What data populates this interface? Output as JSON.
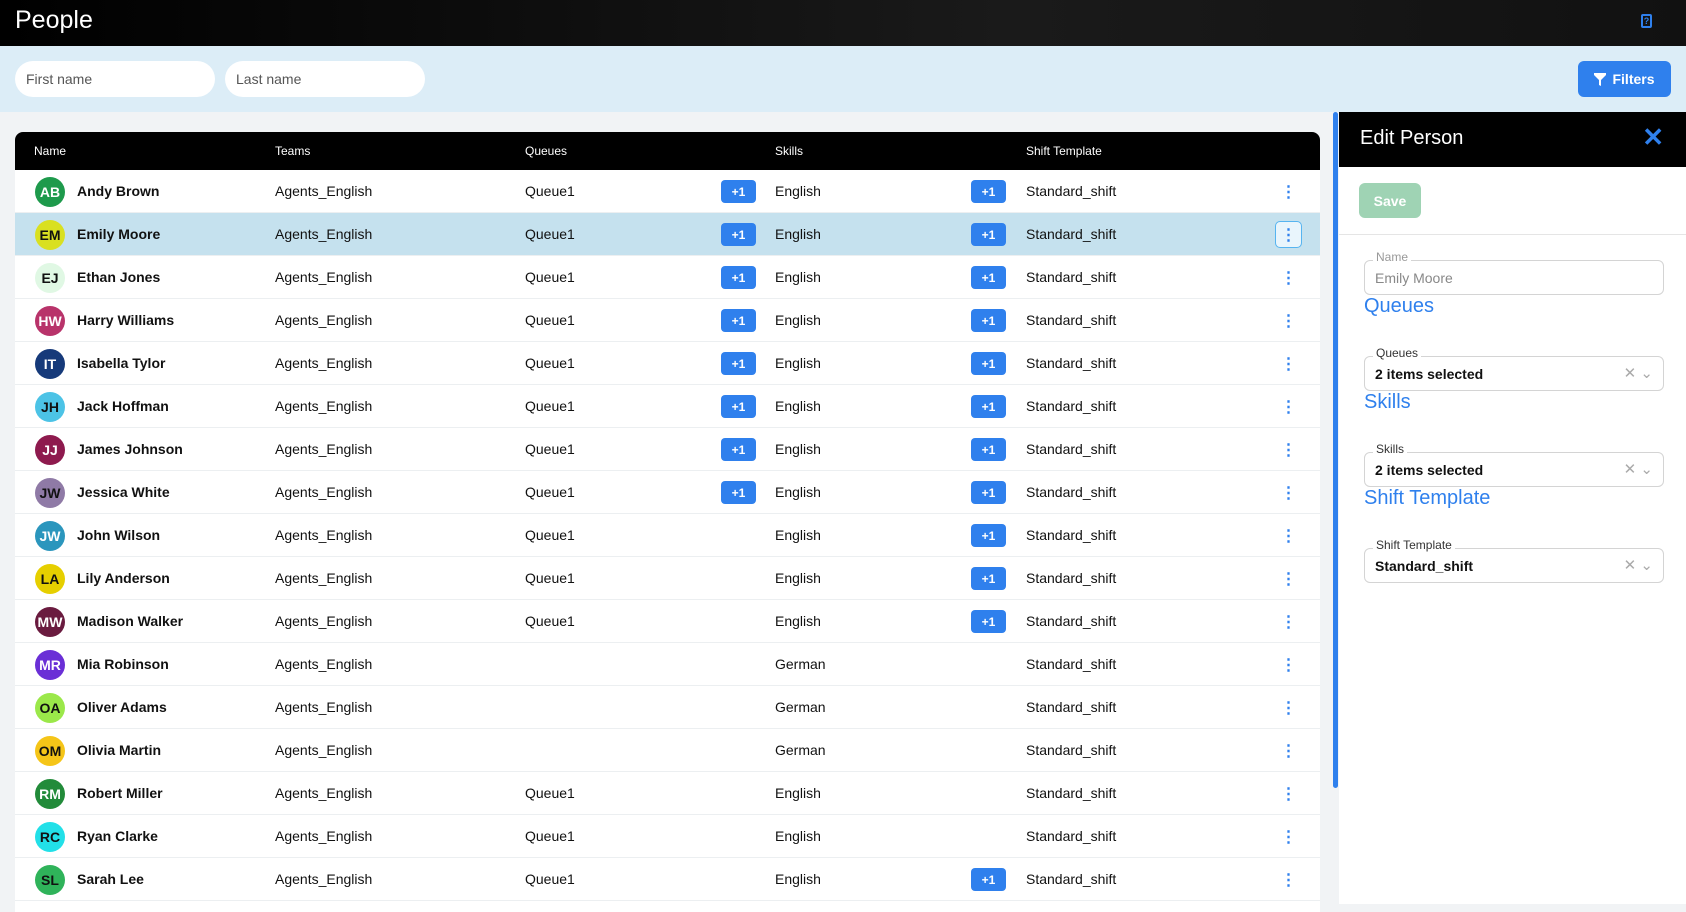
{
  "header": {
    "title": "People",
    "help_icon": "help-icon"
  },
  "toolbar": {
    "first_name_placeholder": "First name",
    "last_name_placeholder": "Last name",
    "filters_label": "Filters"
  },
  "table": {
    "columns": [
      "Name",
      "Teams",
      "Queues",
      "Skills",
      "Shift Template"
    ],
    "rows": [
      {
        "initials": "AB",
        "name": "Andy Brown",
        "color": "#1e9a4c",
        "fg": "#fff",
        "team": "Agents_English",
        "queue": "Queue1",
        "queue_more": "+1",
        "skill": "English",
        "skill_more": "+1",
        "shift": "Standard_shift"
      },
      {
        "initials": "EM",
        "name": "Emily Moore",
        "color": "#d9e021",
        "fg": "#111",
        "team": "Agents_English",
        "queue": "Queue1",
        "queue_more": "+1",
        "skill": "English",
        "skill_more": "+1",
        "shift": "Standard_shift",
        "selected": true
      },
      {
        "initials": "EJ",
        "name": "Ethan Jones",
        "color": "#e0f8e4",
        "fg": "#111",
        "team": "Agents_English",
        "queue": "Queue1",
        "queue_more": "+1",
        "skill": "English",
        "skill_more": "+1",
        "shift": "Standard_shift"
      },
      {
        "initials": "HW",
        "name": "Harry Williams",
        "color": "#b8336a",
        "fg": "#fff",
        "team": "Agents_English",
        "queue": "Queue1",
        "queue_more": "+1",
        "skill": "English",
        "skill_more": "+1",
        "shift": "Standard_shift"
      },
      {
        "initials": "IT",
        "name": "Isabella Tylor",
        "color": "#163a7a",
        "fg": "#fff",
        "team": "Agents_English",
        "queue": "Queue1",
        "queue_more": "+1",
        "skill": "English",
        "skill_more": "+1",
        "shift": "Standard_shift"
      },
      {
        "initials": "JH",
        "name": "Jack Hoffman",
        "color": "#4cc3e6",
        "fg": "#111",
        "team": "Agents_English",
        "queue": "Queue1",
        "queue_more": "+1",
        "skill": "English",
        "skill_more": "+1",
        "shift": "Standard_shift"
      },
      {
        "initials": "JJ",
        "name": "James Johnson",
        "color": "#8e1a4e",
        "fg": "#fff",
        "team": "Agents_English",
        "queue": "Queue1",
        "queue_more": "+1",
        "skill": "English",
        "skill_more": "+1",
        "shift": "Standard_shift"
      },
      {
        "initials": "JW",
        "name": "Jessica White",
        "color": "#8f7aa6",
        "fg": "#111",
        "team": "Agents_English",
        "queue": "Queue1",
        "queue_more": "+1",
        "skill": "English",
        "skill_more": "+1",
        "shift": "Standard_shift"
      },
      {
        "initials": "JW",
        "name": "John Wilson",
        "color": "#2b96bd",
        "fg": "#fff",
        "team": "Agents_English",
        "queue": "Queue1",
        "skill": "English",
        "skill_more": "+1",
        "shift": "Standard_shift"
      },
      {
        "initials": "LA",
        "name": "Lily Anderson",
        "color": "#e6cf00",
        "fg": "#111",
        "team": "Agents_English",
        "queue": "Queue1",
        "skill": "English",
        "skill_more": "+1",
        "shift": "Standard_shift"
      },
      {
        "initials": "MW",
        "name": "Madison Walker",
        "color": "#6a1b3f",
        "fg": "#fff",
        "team": "Agents_English",
        "queue": "Queue1",
        "skill": "English",
        "skill_more": "+1",
        "shift": "Standard_shift"
      },
      {
        "initials": "MR",
        "name": "Mia Robinson",
        "color": "#6a2fd6",
        "fg": "#fff",
        "team": "Agents_English",
        "skill": "German",
        "shift": "Standard_shift"
      },
      {
        "initials": "OA",
        "name": "Oliver Adams",
        "color": "#9be84a",
        "fg": "#111",
        "team": "Agents_English",
        "skill": "German",
        "shift": "Standard_shift"
      },
      {
        "initials": "OM",
        "name": "Olivia Martin",
        "color": "#f5c518",
        "fg": "#111",
        "team": "Agents_English",
        "skill": "German",
        "shift": "Standard_shift"
      },
      {
        "initials": "RM",
        "name": "Robert Miller",
        "color": "#228b3a",
        "fg": "#fff",
        "team": "Agents_English",
        "queue": "Queue1",
        "skill": "English",
        "shift": "Standard_shift"
      },
      {
        "initials": "RC",
        "name": "Ryan Clarke",
        "color": "#22e0e8",
        "fg": "#111",
        "team": "Agents_English",
        "queue": "Queue1",
        "skill": "English",
        "shift": "Standard_shift"
      },
      {
        "initials": "SL",
        "name": "Sarah Lee",
        "color": "#2fb35a",
        "fg": "#111",
        "team": "Agents_English",
        "queue": "Queue1",
        "skill": "English",
        "skill_more": "+1",
        "shift": "Standard_shift"
      }
    ]
  },
  "panel": {
    "title": "Edit Person",
    "save_label": "Save",
    "name_label": "Name",
    "name_value": "Emily Moore",
    "queues_heading": "Queues",
    "queues_label": "Queues",
    "queues_value": "2 items selected",
    "skills_heading": "Skills",
    "skills_label": "Skills",
    "skills_value": "2 items selected",
    "shift_heading": "Shift Template",
    "shift_label": "Shift Template",
    "shift_value": "Standard_shift"
  },
  "colors": {
    "accent": "#2f80ed",
    "save_disabled": "#9fd3b4",
    "selected_row": "#c5e1ee",
    "toolbar_bg": "#dcedf7"
  }
}
